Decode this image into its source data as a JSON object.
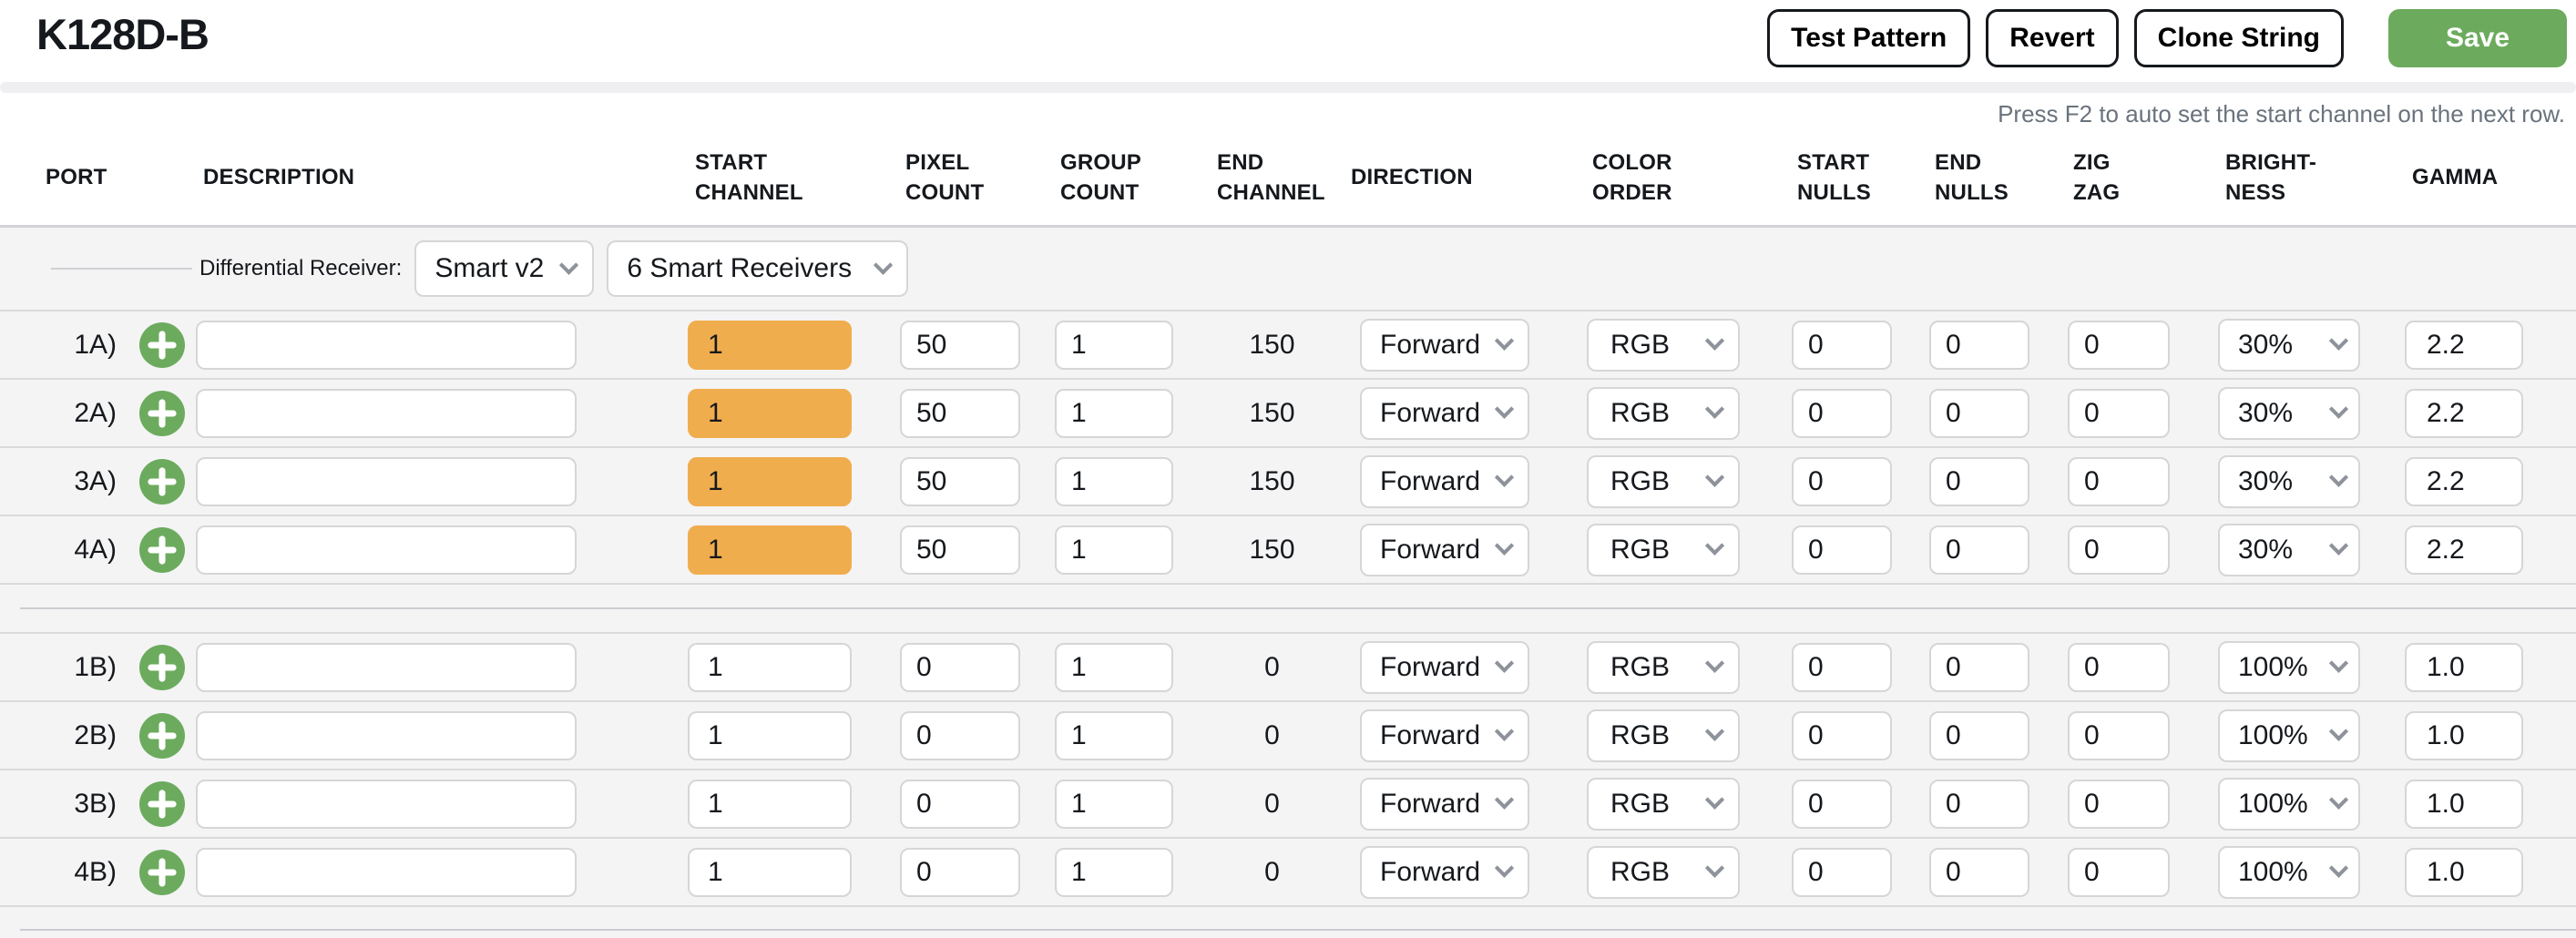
{
  "header": {
    "title": "K128D-B",
    "buttons": {
      "test_pattern": "Test Pattern",
      "revert": "Revert",
      "clone_string": "Clone String",
      "save": "Save"
    },
    "hint": "Press F2 to auto set the start channel on the next row."
  },
  "colors": {
    "accent_green": "#6cab5e",
    "highlight_orange": "#f0ad4e"
  },
  "table": {
    "columns": [
      [
        "PORT",
        ""
      ],
      [
        "DESCRIPTION",
        ""
      ],
      [
        "START",
        "CHANNEL"
      ],
      [
        "PIXEL",
        "COUNT"
      ],
      [
        "GROUP",
        "COUNT"
      ],
      [
        "END",
        "CHANNEL"
      ],
      [
        "DIRECTION",
        ""
      ],
      [
        "COLOR",
        "ORDER"
      ],
      [
        "START",
        "NULLS"
      ],
      [
        "END",
        "NULLS"
      ],
      [
        "ZIG",
        "ZAG"
      ],
      [
        "BRIGHT-",
        "NESS"
      ],
      [
        "GAMMA",
        ""
      ]
    ],
    "receiver": {
      "label": "Differential Receiver:",
      "type_value": "Smart v2",
      "count_value": "6 Smart Receivers"
    },
    "groups": [
      {
        "rows": [
          {
            "port": "1A)",
            "description": "",
            "start_channel": "1",
            "start_highlight": true,
            "pixel_count": "50",
            "group_count": "1",
            "end_channel": "150",
            "direction": "Forward",
            "color_order": "RGB",
            "start_nulls": "0",
            "end_nulls": "0",
            "zig_zag": "0",
            "brightness": "30%",
            "gamma": "2.2"
          },
          {
            "port": "2A)",
            "description": "",
            "start_channel": "1",
            "start_highlight": true,
            "pixel_count": "50",
            "group_count": "1",
            "end_channel": "150",
            "direction": "Forward",
            "color_order": "RGB",
            "start_nulls": "0",
            "end_nulls": "0",
            "zig_zag": "0",
            "brightness": "30%",
            "gamma": "2.2"
          },
          {
            "port": "3A)",
            "description": "",
            "start_channel": "1",
            "start_highlight": true,
            "pixel_count": "50",
            "group_count": "1",
            "end_channel": "150",
            "direction": "Forward",
            "color_order": "RGB",
            "start_nulls": "0",
            "end_nulls": "0",
            "zig_zag": "0",
            "brightness": "30%",
            "gamma": "2.2"
          },
          {
            "port": "4A)",
            "description": "",
            "start_channel": "1",
            "start_highlight": true,
            "pixel_count": "50",
            "group_count": "1",
            "end_channel": "150",
            "direction": "Forward",
            "color_order": "RGB",
            "start_nulls": "0",
            "end_nulls": "0",
            "zig_zag": "0",
            "brightness": "30%",
            "gamma": "2.2"
          }
        ]
      },
      {
        "rows": [
          {
            "port": "1B)",
            "description": "",
            "start_channel": "1",
            "start_highlight": false,
            "pixel_count": "0",
            "group_count": "1",
            "end_channel": "0",
            "direction": "Forward",
            "color_order": "RGB",
            "start_nulls": "0",
            "end_nulls": "0",
            "zig_zag": "0",
            "brightness": "100%",
            "gamma": "1.0"
          },
          {
            "port": "2B)",
            "description": "",
            "start_channel": "1",
            "start_highlight": false,
            "pixel_count": "0",
            "group_count": "1",
            "end_channel": "0",
            "direction": "Forward",
            "color_order": "RGB",
            "start_nulls": "0",
            "end_nulls": "0",
            "zig_zag": "0",
            "brightness": "100%",
            "gamma": "1.0"
          },
          {
            "port": "3B)",
            "description": "",
            "start_channel": "1",
            "start_highlight": false,
            "pixel_count": "0",
            "group_count": "1",
            "end_channel": "0",
            "direction": "Forward",
            "color_order": "RGB",
            "start_nulls": "0",
            "end_nulls": "0",
            "zig_zag": "0",
            "brightness": "100%",
            "gamma": "1.0"
          },
          {
            "port": "4B)",
            "description": "",
            "start_channel": "1",
            "start_highlight": false,
            "pixel_count": "0",
            "group_count": "1",
            "end_channel": "0",
            "direction": "Forward",
            "color_order": "RGB",
            "start_nulls": "0",
            "end_nulls": "0",
            "zig_zag": "0",
            "brightness": "100%",
            "gamma": "1.0"
          }
        ]
      }
    ]
  }
}
